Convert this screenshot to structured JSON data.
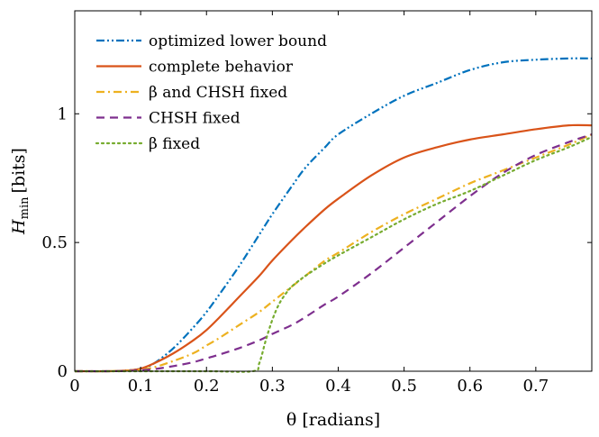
{
  "chart_data": {
    "type": "line",
    "xlabel": "θ [radians]",
    "ylabel": "H_min [bits]",
    "ylabel_main": "H",
    "ylabel_sub": "min",
    "ylabel_unit": "[bits]",
    "xlim": [
      0,
      0.785
    ],
    "ylim": [
      0,
      1.4
    ],
    "xticks": [
      0,
      0.1,
      0.2,
      0.3,
      0.4,
      0.5,
      0.6,
      0.7
    ],
    "xtick_labels": [
      "0",
      "0.1",
      "0.2",
      "0.3",
      "0.4",
      "0.5",
      "0.6",
      "0.7"
    ],
    "yticks": [
      0,
      0.5,
      1
    ],
    "ytick_labels": [
      "0",
      "0.5",
      "1"
    ],
    "grid": false,
    "legend_position": "top-left",
    "series": [
      {
        "name": "optimized lower bound",
        "color": "#0072BD",
        "dash": "dash-dot-dot",
        "x": [
          0,
          0.05,
          0.08,
          0.1,
          0.12,
          0.15,
          0.18,
          0.2,
          0.22,
          0.25,
          0.28,
          0.3,
          0.33,
          0.35,
          0.38,
          0.4,
          0.45,
          0.5,
          0.55,
          0.6,
          0.65,
          0.7,
          0.75,
          0.785
        ],
        "y": [
          0,
          0,
          0.003,
          0.01,
          0.03,
          0.09,
          0.17,
          0.23,
          0.3,
          0.41,
          0.53,
          0.61,
          0.72,
          0.79,
          0.87,
          0.92,
          1.0,
          1.07,
          1.12,
          1.17,
          1.2,
          1.21,
          1.215,
          1.215
        ]
      },
      {
        "name": "complete behavior",
        "color": "#D95319",
        "dash": "solid",
        "x": [
          0,
          0.05,
          0.08,
          0.1,
          0.12,
          0.15,
          0.18,
          0.2,
          0.22,
          0.25,
          0.28,
          0.3,
          0.33,
          0.35,
          0.38,
          0.4,
          0.45,
          0.5,
          0.55,
          0.6,
          0.65,
          0.7,
          0.75,
          0.785
        ],
        "y": [
          0,
          0,
          0.003,
          0.01,
          0.03,
          0.07,
          0.12,
          0.16,
          0.21,
          0.29,
          0.37,
          0.43,
          0.51,
          0.56,
          0.63,
          0.67,
          0.76,
          0.83,
          0.87,
          0.9,
          0.92,
          0.94,
          0.955,
          0.955
        ]
      },
      {
        "name": "β and CHSH fixed",
        "color": "#EDB120",
        "dash": "dash-dot",
        "x": [
          0,
          0.05,
          0.08,
          0.1,
          0.12,
          0.15,
          0.18,
          0.2,
          0.22,
          0.25,
          0.28,
          0.3,
          0.33,
          0.35,
          0.38,
          0.4,
          0.45,
          0.5,
          0.55,
          0.6,
          0.65,
          0.7,
          0.75,
          0.785
        ],
        "y": [
          0,
          0,
          0.002,
          0.006,
          0.015,
          0.04,
          0.07,
          0.1,
          0.13,
          0.18,
          0.23,
          0.27,
          0.33,
          0.37,
          0.43,
          0.46,
          0.54,
          0.61,
          0.67,
          0.73,
          0.78,
          0.83,
          0.88,
          0.92
        ]
      },
      {
        "name": "CHSH fixed",
        "color": "#7E2F8E",
        "dash": "dashed",
        "x": [
          0,
          0.05,
          0.08,
          0.1,
          0.12,
          0.15,
          0.18,
          0.2,
          0.22,
          0.25,
          0.28,
          0.3,
          0.33,
          0.35,
          0.38,
          0.4,
          0.45,
          0.5,
          0.55,
          0.6,
          0.65,
          0.7,
          0.75,
          0.785
        ],
        "y": [
          0,
          0,
          0.001,
          0.004,
          0.008,
          0.02,
          0.035,
          0.05,
          0.065,
          0.09,
          0.12,
          0.145,
          0.18,
          0.21,
          0.26,
          0.29,
          0.38,
          0.48,
          0.58,
          0.68,
          0.77,
          0.84,
          0.89,
          0.92
        ]
      },
      {
        "name": "β fixed",
        "color": "#77AC30",
        "dash": "dotted",
        "x": [
          0,
          0.1,
          0.2,
          0.27,
          0.28,
          0.29,
          0.3,
          0.31,
          0.32,
          0.33,
          0.35,
          0.38,
          0.4,
          0.45,
          0.5,
          0.55,
          0.6,
          0.65,
          0.7,
          0.75,
          0.785
        ],
        "y": [
          0,
          0,
          0,
          0,
          0.03,
          0.12,
          0.2,
          0.26,
          0.3,
          0.33,
          0.37,
          0.42,
          0.45,
          0.52,
          0.59,
          0.65,
          0.7,
          0.76,
          0.82,
          0.87,
          0.91
        ]
      }
    ]
  }
}
